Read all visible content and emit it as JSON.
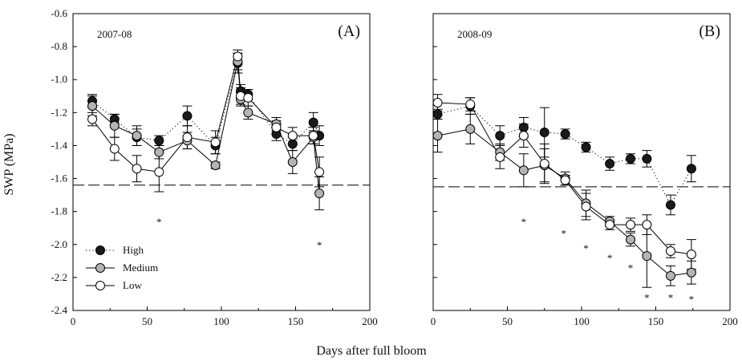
{
  "chart_data": [
    {
      "type": "line",
      "panel_label": "(A)",
      "season": "2007-08",
      "xlabel": "Days after full bloom",
      "ylabel": "SWP (MPa)",
      "xlim": [
        0,
        200
      ],
      "ylim": [
        -2.4,
        -0.6
      ],
      "x_ticks": [
        "0",
        "50",
        "100",
        "150",
        "200"
      ],
      "y_ticks": [
        "-2.4",
        "-2.2",
        "-2.0",
        "-1.8",
        "-1.6",
        "-1.4",
        "-1.2",
        "-1.0",
        "-0.8",
        "-0.6"
      ],
      "reference_line": -1.64,
      "legend_position": "bottom-left",
      "series": [
        {
          "name": "High",
          "fill": "#1a1a1a",
          "line": "dotted",
          "points": [
            {
              "x": 13,
              "y": -1.13,
              "err": 0.04
            },
            {
              "x": 28,
              "y": -1.24,
              "err": 0.03
            },
            {
              "x": 43,
              "y": -1.35,
              "err": 0.05
            },
            {
              "x": 58,
              "y": -1.37,
              "err": 0.03
            },
            {
              "x": 77,
              "y": -1.22,
              "err": 0.06
            },
            {
              "x": 96,
              "y": -1.4,
              "err": 0.05
            },
            {
              "x": 111,
              "y": -0.9,
              "err": 0.06
            },
            {
              "x": 113,
              "y": -1.07,
              "err": 0.04
            },
            {
              "x": 118,
              "y": -1.09,
              "err": 0.03
            },
            {
              "x": 137,
              "y": -1.33,
              "err": 0.04
            },
            {
              "x": 148,
              "y": -1.39,
              "err": 0.04
            },
            {
              "x": 162,
              "y": -1.26,
              "err": 0.06
            },
            {
              "x": 166,
              "y": -1.34,
              "err": 0.06
            }
          ]
        },
        {
          "name": "Medium",
          "fill": "#b4b4b4",
          "line": "solid",
          "points": [
            {
              "x": 13,
              "y": -1.16,
              "err": 0.06
            },
            {
              "x": 28,
              "y": -1.28,
              "err": 0.07
            },
            {
              "x": 43,
              "y": -1.34,
              "err": 0.06
            },
            {
              "x": 58,
              "y": -1.44,
              "err": 0.04
            },
            {
              "x": 77,
              "y": -1.37,
              "err": 0.05
            },
            {
              "x": 96,
              "y": -1.52,
              "err": 0.02
            },
            {
              "x": 111,
              "y": -0.89,
              "err": 0.05
            },
            {
              "x": 113,
              "y": -1.12,
              "err": 0.04
            },
            {
              "x": 118,
              "y": -1.2,
              "err": 0.04
            },
            {
              "x": 137,
              "y": -1.27,
              "err": 0.04
            },
            {
              "x": 148,
              "y": -1.5,
              "err": 0.07
            },
            {
              "x": 162,
              "y": -1.35,
              "err": 0.04
            },
            {
              "x": 166,
              "y": -1.69,
              "err": 0.1
            }
          ]
        },
        {
          "name": "Low",
          "fill": "#ffffff",
          "line": "solid",
          "points": [
            {
              "x": 13,
              "y": -1.24,
              "err": 0.04
            },
            {
              "x": 28,
              "y": -1.42,
              "err": 0.07
            },
            {
              "x": 43,
              "y": -1.54,
              "err": 0.08
            },
            {
              "x": 58,
              "y": -1.56,
              "err": 0.12
            },
            {
              "x": 77,
              "y": -1.35,
              "err": 0.07
            },
            {
              "x": 96,
              "y": -1.38,
              "err": 0.07
            },
            {
              "x": 111,
              "y": -0.86,
              "err": 0.04
            },
            {
              "x": 113,
              "y": -1.1,
              "err": 0.05
            },
            {
              "x": 118,
              "y": -1.11,
              "err": 0.05
            },
            {
              "x": 137,
              "y": -1.29,
              "err": 0.04
            },
            {
              "x": 148,
              "y": -1.34,
              "err": 0.05
            },
            {
              "x": 162,
              "y": -1.34,
              "err": 0.05
            },
            {
              "x": 166,
              "y": -1.56,
              "err": 0.09
            }
          ]
        }
      ],
      "significance_marks": [
        {
          "x": 58,
          "y": -1.86,
          "label": "*"
        },
        {
          "x": 166,
          "y": -2.0,
          "label": "*"
        }
      ]
    },
    {
      "type": "line",
      "panel_label": "(B)",
      "season": "2008-09",
      "xlabel": "Days after full bloom",
      "ylabel": "SWP (MPa)",
      "xlim": [
        0,
        200
      ],
      "ylim": [
        -2.4,
        -0.6
      ],
      "x_ticks": [
        "0",
        "50",
        "100",
        "150",
        "200"
      ],
      "y_ticks": [
        "-2.4",
        "-2.2",
        "-2.0",
        "-1.8",
        "-1.6",
        "-1.4",
        "-1.2",
        "-1.0",
        "-0.8",
        "-0.6"
      ],
      "reference_line": -1.65,
      "series": [
        {
          "name": "High",
          "fill": "#1a1a1a",
          "line": "dotted",
          "points": [
            {
              "x": 3,
              "y": -1.21,
              "err": 0.03
            },
            {
              "x": 25,
              "y": -1.16,
              "err": 0.05
            },
            {
              "x": 45,
              "y": -1.34,
              "err": 0.06
            },
            {
              "x": 61,
              "y": -1.29,
              "err": 0.06
            },
            {
              "x": 75,
              "y": -1.32,
              "err": 0.15
            },
            {
              "x": 89,
              "y": -1.33,
              "err": 0.03
            },
            {
              "x": 103,
              "y": -1.41,
              "err": 0.03
            },
            {
              "x": 119,
              "y": -1.51,
              "err": 0.04
            },
            {
              "x": 133,
              "y": -1.48,
              "err": 0.03
            },
            {
              "x": 144,
              "y": -1.48,
              "err": 0.05
            },
            {
              "x": 160,
              "y": -1.76,
              "err": 0.06
            },
            {
              "x": 174,
              "y": -1.54,
              "err": 0.08
            }
          ]
        },
        {
          "name": "Medium",
          "fill": "#b4b4b4",
          "line": "solid",
          "points": [
            {
              "x": 3,
              "y": -1.34,
              "err": 0.1
            },
            {
              "x": 25,
              "y": -1.3,
              "err": 0.09
            },
            {
              "x": 45,
              "y": -1.44,
              "err": 0.05
            },
            {
              "x": 61,
              "y": -1.55,
              "err": 0.1
            },
            {
              "x": 75,
              "y": -1.52,
              "err": 0.1
            },
            {
              "x": 89,
              "y": -1.6,
              "err": 0.04
            },
            {
              "x": 103,
              "y": -1.75,
              "err": 0.08
            },
            {
              "x": 119,
              "y": -1.86,
              "err": 0.03
            },
            {
              "x": 133,
              "y": -1.97,
              "err": 0.04
            },
            {
              "x": 144,
              "y": -2.07,
              "err": 0.19
            },
            {
              "x": 160,
              "y": -2.19,
              "err": 0.06
            },
            {
              "x": 174,
              "y": -2.17,
              "err": 0.07
            }
          ]
        },
        {
          "name": "Low",
          "fill": "#ffffff",
          "line": "solid",
          "points": [
            {
              "x": 3,
              "y": -1.14,
              "err": 0.05
            },
            {
              "x": 25,
              "y": -1.15,
              "err": 0.04
            },
            {
              "x": 45,
              "y": -1.47,
              "err": 0.07
            },
            {
              "x": 61,
              "y": -1.34,
              "err": 0.07
            },
            {
              "x": 75,
              "y": -1.51,
              "err": 0.12
            },
            {
              "x": 89,
              "y": -1.61,
              "err": 0.03
            },
            {
              "x": 103,
              "y": -1.77,
              "err": 0.08
            },
            {
              "x": 119,
              "y": -1.88,
              "err": 0.03
            },
            {
              "x": 133,
              "y": -1.88,
              "err": 0.04
            },
            {
              "x": 144,
              "y": -1.88,
              "err": 0.06
            },
            {
              "x": 160,
              "y": -2.04,
              "err": 0.04
            },
            {
              "x": 174,
              "y": -2.06,
              "err": 0.09
            }
          ]
        }
      ],
      "significance_marks": [
        {
          "x": 61,
          "y": -1.86,
          "label": "*"
        },
        {
          "x": 88,
          "y": -1.93,
          "label": "*"
        },
        {
          "x": 103,
          "y": -2.02,
          "label": "*"
        },
        {
          "x": 119,
          "y": -2.08,
          "label": "*"
        },
        {
          "x": 133,
          "y": -2.14,
          "label": "*"
        },
        {
          "x": 144,
          "y": -2.32,
          "label": "*"
        },
        {
          "x": 160,
          "y": -2.32,
          "label": "*"
        },
        {
          "x": 174,
          "y": -2.33,
          "label": "*"
        }
      ]
    }
  ]
}
